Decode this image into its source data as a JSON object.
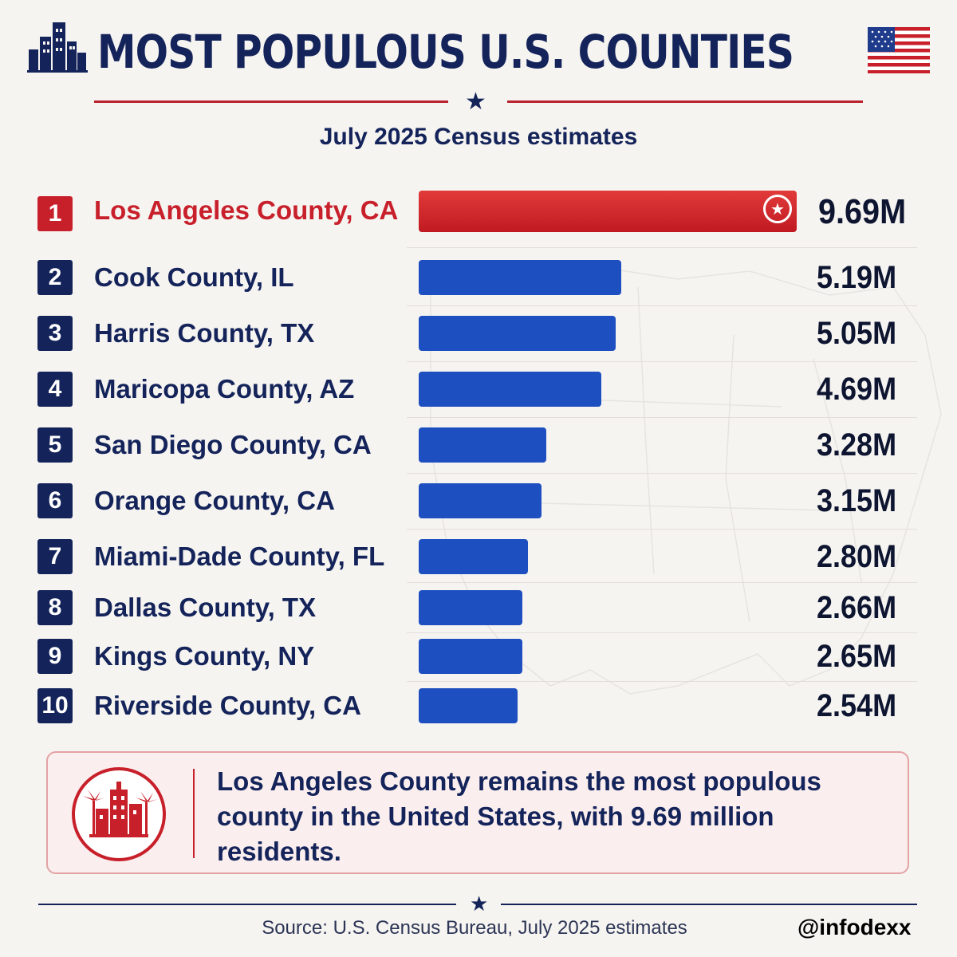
{
  "header": {
    "title": "MOST POPULOUS U.S. COUNTIES",
    "subtitle": "July 2025 Census estimates"
  },
  "colors": {
    "navy": "#14245a",
    "red": "#c8202b",
    "bar_blue": "#1e4fc0"
  },
  "icons": {
    "title_left": "city-skyline-icon",
    "title_right": "us-flag-icon",
    "divider": "star-icon",
    "callout": "palm-tree-city-icon"
  },
  "chart_data": {
    "type": "bar",
    "orientation": "horizontal",
    "ranks": [
      "1",
      "2",
      "3",
      "4",
      "5",
      "6",
      "7",
      "8",
      "9",
      "10"
    ],
    "categories": [
      "Los Angeles County, CA",
      "Cook County, IL",
      "Harris County, TX",
      "Maricopa County, AZ",
      "San Diego County, CA",
      "Orange County, CA",
      "Miami-Dade County, FL",
      "Dallas County, TX",
      "Kings County, NY",
      "Riverside County, CA"
    ],
    "values": [
      9.69,
      5.19,
      5.05,
      4.69,
      3.28,
      3.15,
      2.8,
      2.66,
      2.65,
      2.54
    ],
    "value_labels": [
      "9.69M",
      "5.19M",
      "5.05M",
      "4.69M",
      "3.28M",
      "3.15M",
      "2.80M",
      "2.66M",
      "2.65M",
      "2.54M"
    ],
    "unit": "M",
    "highlight_index": 0,
    "xlim": [
      0,
      9.69
    ],
    "grid": false,
    "legend": "none"
  },
  "callout": {
    "text": "Los Angeles County remains the most populous county in the United States, with 9.69 million residents."
  },
  "footer": {
    "source": "Source: U.S. Census Bureau, July 2025 estimates",
    "handle": "@infodexx"
  }
}
